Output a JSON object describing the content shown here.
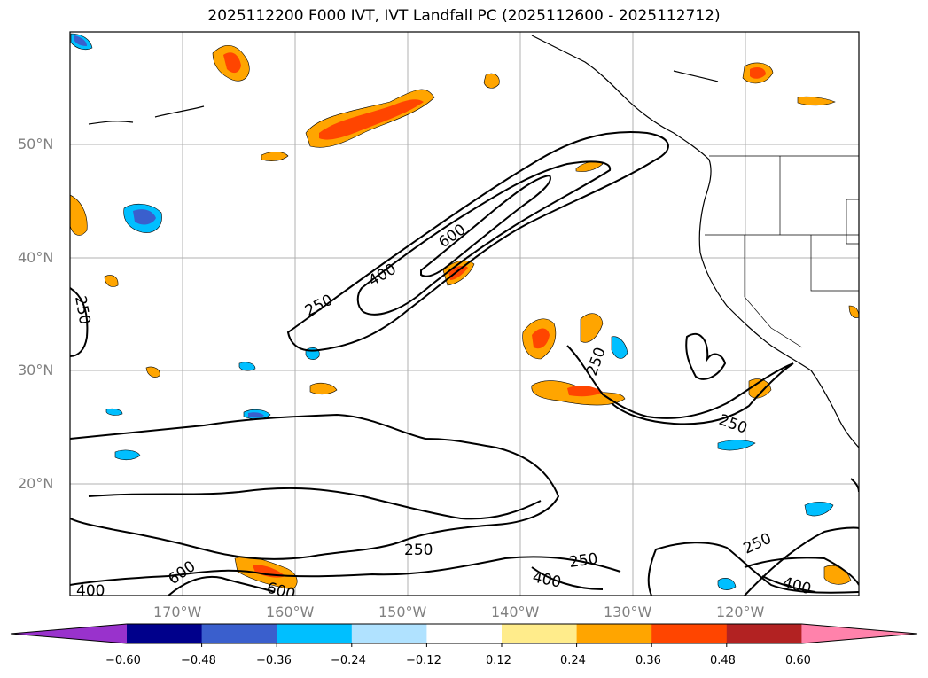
{
  "title": "2025112200 F000 IVT, IVT Landfall PC (2025112600 - 2025112712)",
  "axes": {
    "lat_ticks": [
      "50°N",
      "40°N",
      "30°N",
      "20°N"
    ],
    "lon_ticks": [
      "170°W",
      "160°W",
      "150°W",
      "140°W",
      "130°W",
      "120°W"
    ]
  },
  "ivt_contour_labels": [
    "250",
    "400",
    "600",
    "250",
    "250",
    "250",
    "250",
    "400",
    "600",
    "600",
    "250",
    "400",
    "250",
    "400"
  ],
  "colorbar": {
    "ticks": [
      "−0.60",
      "−0.48",
      "−0.36",
      "−0.24",
      "−0.12",
      "0.12",
      "0.24",
      "0.36",
      "0.48",
      "0.60"
    ],
    "colors": [
      "#9932cc",
      "#00008b",
      "#3a5fcd",
      "#00bfff",
      "#b0e2ff",
      "#ffffff",
      "#ffec8b",
      "#ffa500",
      "#ff4500",
      "#b22222",
      "#ff82ab"
    ]
  }
}
